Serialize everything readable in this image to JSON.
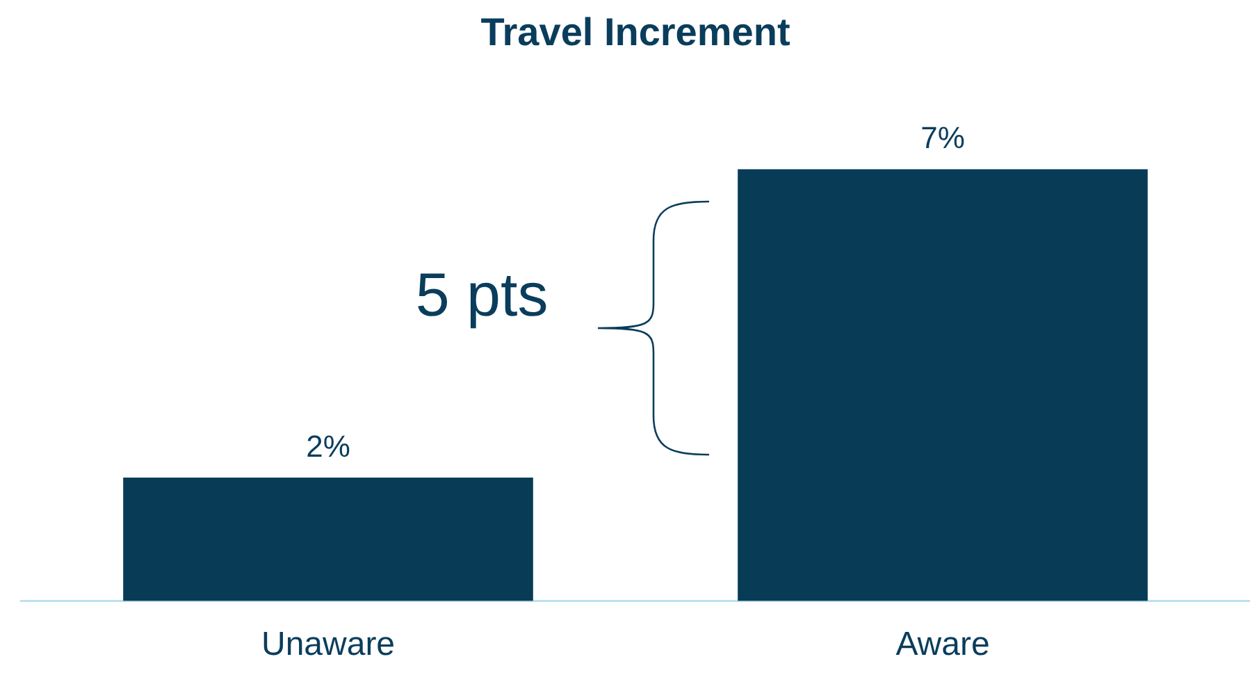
{
  "chart_data": {
    "type": "bar",
    "title": "Travel Increment",
    "categories": [
      "Unaware",
      "Aware"
    ],
    "values": [
      2,
      7
    ],
    "color": "#073b56",
    "value_labels": [
      "2%",
      "7%"
    ],
    "annotations": [
      "5 pts"
    ],
    "grid": false,
    "legend": false
  }
}
